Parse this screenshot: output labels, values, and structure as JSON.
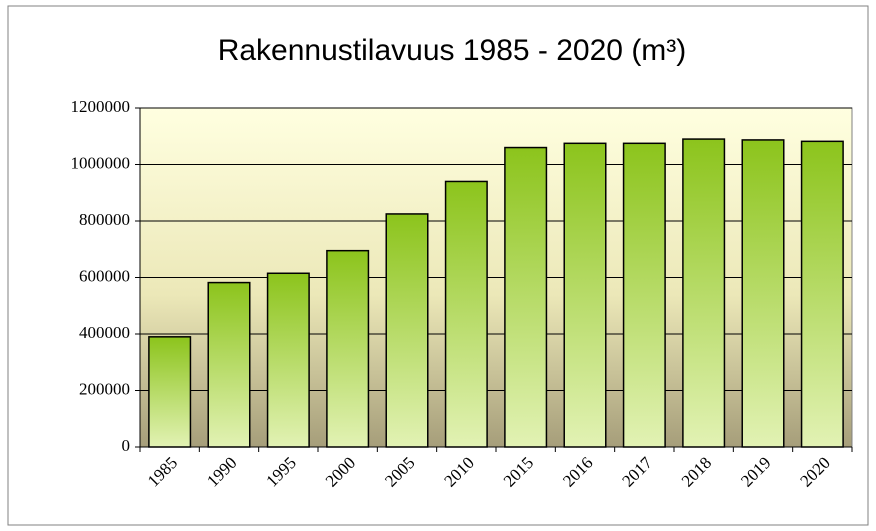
{
  "chart_data": {
    "type": "bar",
    "title": "Rakennustilavuus 1985 - 2020 (m³)",
    "categories": [
      "1985",
      "1990",
      "1995",
      "2000",
      "2005",
      "2010",
      "2015",
      "2016",
      "2017",
      "2018",
      "2019",
      "2020"
    ],
    "values": [
      390000,
      582000,
      615000,
      695000,
      825000,
      940000,
      1060000,
      1075000,
      1075000,
      1090000,
      1087000,
      1082000
    ],
    "color": "#8cc41c",
    "ylim": [
      0,
      1200000
    ],
    "yticks": [
      0,
      200000,
      400000,
      600000,
      800000,
      1000000,
      1200000
    ],
    "grid": true
  }
}
